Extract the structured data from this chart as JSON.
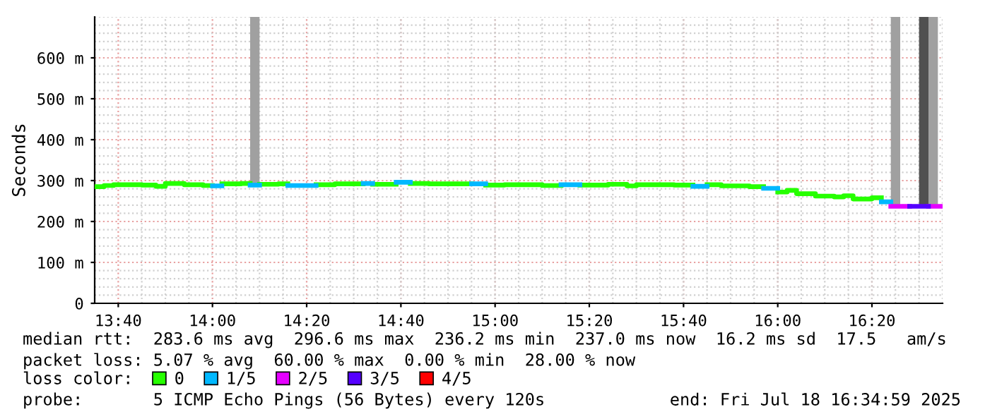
{
  "chart_data": {
    "type": "line",
    "ylabel": "Seconds",
    "legend_title": "loss color:",
    "legend": "bottom",
    "grid": true,
    "xlim": [
      13.5833,
      16.5833
    ],
    "xticks": [
      {
        "value": 13.6667,
        "label": "13:40"
      },
      {
        "value": 14.0,
        "label": "14:00"
      },
      {
        "value": 14.3333,
        "label": "14:20"
      },
      {
        "value": 14.6667,
        "label": "14:40"
      },
      {
        "value": 15.0,
        "label": "15:00"
      },
      {
        "value": 15.3333,
        "label": "15:20"
      },
      {
        "value": 15.6667,
        "label": "15:40"
      },
      {
        "value": 16.0,
        "label": "16:00"
      },
      {
        "value": 16.3333,
        "label": "16:20"
      }
    ],
    "ylim": [
      0,
      700
    ],
    "yticks": [
      0,
      {
        "value": 100,
        "label": "100 m"
      },
      {
        "value": 200,
        "label": "200 m"
      },
      {
        "value": 300,
        "label": "300 m"
      },
      {
        "value": 400,
        "label": "400 m"
      },
      {
        "value": 500,
        "label": "500 m"
      },
      {
        "value": 600,
        "label": "600 m"
      }
    ],
    "series": [
      {
        "name": "0",
        "color": "#26ff00",
        "x": [
          13.5833,
          13.6167,
          13.6167,
          13.65,
          13.65,
          13.75,
          13.75,
          13.8,
          13.8,
          13.8333,
          13.8333,
          13.9,
          13.9,
          13.9667,
          13.9667,
          14.0,
          null,
          14.0333,
          14.1,
          14.1,
          14.1333,
          null,
          14.1667,
          14.2333,
          14.2333,
          14.2667,
          null,
          14.3667,
          14.4333,
          14.4333,
          14.5333,
          null,
          14.5667,
          14.65,
          null,
          14.7,
          14.7667,
          14.7667,
          14.9167,
          null,
          14.9667,
          15.0333,
          15.0333,
          15.1667,
          15.1667,
          15.2333,
          null,
          15.3,
          15.4,
          15.4,
          15.4667,
          15.4667,
          15.5,
          15.5,
          15.6333,
          15.6333,
          15.7,
          null,
          15.75,
          15.8,
          15.8,
          15.9,
          15.9,
          15.95,
          null,
          16.0,
          16.0333,
          16.0333,
          16.0667,
          16.0667,
          16.1333,
          16.1333,
          16.2,
          16.2,
          16.2333,
          16.2333,
          16.2667,
          16.2667,
          16.3333,
          16.3333,
          16.3667
        ],
        "values": [
          285,
          285,
          288,
          288,
          290,
          290,
          289,
          289,
          286,
          286,
          293,
          293,
          290,
          290,
          288,
          288,
          null,
          292,
          292,
          293,
          293,
          null,
          291,
          291,
          292,
          292,
          null,
          290,
          290,
          292,
          292,
          null,
          291,
          291,
          null,
          293,
          293,
          292,
          292,
          null,
          289,
          289,
          290,
          290,
          288,
          288,
          null,
          289,
          289,
          291,
          291,
          287,
          287,
          290,
          290,
          289,
          289,
          null,
          290,
          290,
          287,
          287,
          285,
          285,
          null,
          272,
          272,
          276,
          276,
          268,
          268,
          262,
          262,
          260,
          260,
          263,
          263,
          255,
          255,
          258,
          258
        ]
      },
      {
        "name": "1/5",
        "color": "#00b8ff",
        "x": [
          14.0,
          14.0333,
          null,
          14.1333,
          14.1667,
          null,
          14.2667,
          14.3667,
          null,
          14.5333,
          14.5667,
          null,
          14.65,
          14.7,
          null,
          14.9167,
          14.9667,
          null,
          15.2333,
          15.3,
          null,
          15.7,
          15.75,
          null,
          15.95,
          16.0,
          null,
          16.3667,
          16.4
        ],
        "values": [
          287,
          287,
          null,
          289,
          289,
          null,
          288,
          288,
          null,
          293,
          293,
          null,
          296,
          296,
          null,
          292,
          292,
          null,
          290,
          290,
          null,
          286,
          286,
          null,
          281,
          281,
          null,
          248,
          248
        ]
      },
      {
        "name": "2/5",
        "color": "#e500ff",
        "x": [
          16.4,
          16.4667,
          null,
          16.5333,
          16.5833
        ],
        "values": [
          237,
          237,
          null,
          237,
          237
        ]
      },
      {
        "name": "3/5",
        "color": "#5500ff",
        "x": [
          16.4667,
          16.5333
        ],
        "values": [
          237,
          237
        ]
      },
      {
        "name": "4/5",
        "color": "#ff0000"
      },
      {
        "type": "bar",
        "x": [
          14.15,
          16.4167,
          16.5167,
          16.55
        ],
        "base": [
          290,
          240,
          240,
          240
        ],
        "values": [
          410,
          460,
          460,
          460
        ],
        "colors": [
          "#a0a0a0",
          "#a0a0a0",
          "#505050",
          "#a0a0a0"
        ]
      }
    ],
    "annotations": [
      "median rtt:  283.6 ms avg  296.6 ms max  236.2 ms min  237.0 ms now  16.2 ms sd  17.5   am/s",
      "packet loss: 5.07 % avg  60.00 % max  0.00 % min  28.00 % now",
      "probe:       5 ICMP Echo Pings (56 Bytes) every 120s",
      "end: Fri Jul 18 16:34:59 2025"
    ]
  }
}
